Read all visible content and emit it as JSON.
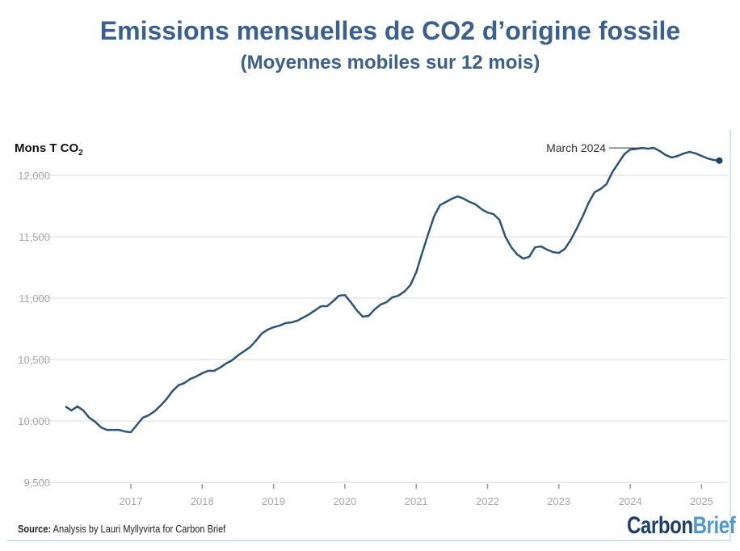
{
  "title": "Emissions mensuelles de CO2 d’origine fossile",
  "subtitle": "(Moyennes mobiles sur 12 mois)",
  "source_label": "Source:",
  "source_text": " Analysis by Lauri Myllyvirta for Carbon Brief",
  "logo": {
    "part1": "Carbon",
    "part2": "Brief"
  },
  "colors": {
    "line": "#2d5477",
    "title": "#3b5f8e",
    "grid": "#e6e6e6"
  },
  "chart_data": {
    "type": "line",
    "title": "Emissions mensuelles de CO2 d’origine fossile",
    "ylabel_main": "Mons T CO",
    "ylabel_sub": "2",
    "xlabel": "",
    "ylim": [
      9500,
      12250
    ],
    "yticks": [
      9500,
      10000,
      10500,
      11000,
      11500,
      12000
    ],
    "ytick_labels": [
      "9,500",
      "10,000",
      "10,500",
      "11,000",
      "11,500",
      "12,000"
    ],
    "xticks": [
      2017,
      2018,
      2019,
      2020,
      2021,
      2022,
      2023,
      2024,
      2025
    ],
    "xtick_labels": [
      "2017",
      "2018",
      "2019",
      "2020",
      "2021",
      "2022",
      "2023",
      "2024",
      "2025"
    ],
    "grid": true,
    "start_year": 2016,
    "start_month": 2,
    "frequency": "monthly",
    "values": [
      10118,
      10085,
      10118,
      10085,
      10026,
      9993,
      9947,
      9927,
      9927,
      9927,
      9914,
      9908,
      9967,
      10026,
      10046,
      10079,
      10125,
      10178,
      10243,
      10290,
      10309,
      10342,
      10362,
      10388,
      10408,
      10408,
      10434,
      10467,
      10493,
      10533,
      10566,
      10599,
      10651,
      10711,
      10743,
      10763,
      10776,
      10796,
      10802,
      10816,
      10842,
      10868,
      10901,
      10934,
      10934,
      10974,
      11020,
      11025,
      10967,
      10901,
      10849,
      10855,
      10908,
      10947,
      10967,
      11007,
      11020,
      11053,
      11105,
      11210,
      11368,
      11520,
      11665,
      11757,
      11783,
      11809,
      11829,
      11809,
      11783,
      11763,
      11724,
      11697,
      11684,
      11638,
      11500,
      11414,
      11355,
      11322,
      11336,
      11414,
      11421,
      11395,
      11375,
      11368,
      11401,
      11474,
      11566,
      11665,
      11776,
      11862,
      11888,
      11928,
      12026,
      12099,
      12171,
      12210,
      12215,
      12223,
      12217,
      12223,
      12197,
      12164,
      12145,
      12158,
      12178,
      12191,
      12178,
      12158,
      12138,
      12125,
      12120
    ],
    "annotation": {
      "text": "March 2024",
      "year": 2024,
      "month": 3
    }
  }
}
